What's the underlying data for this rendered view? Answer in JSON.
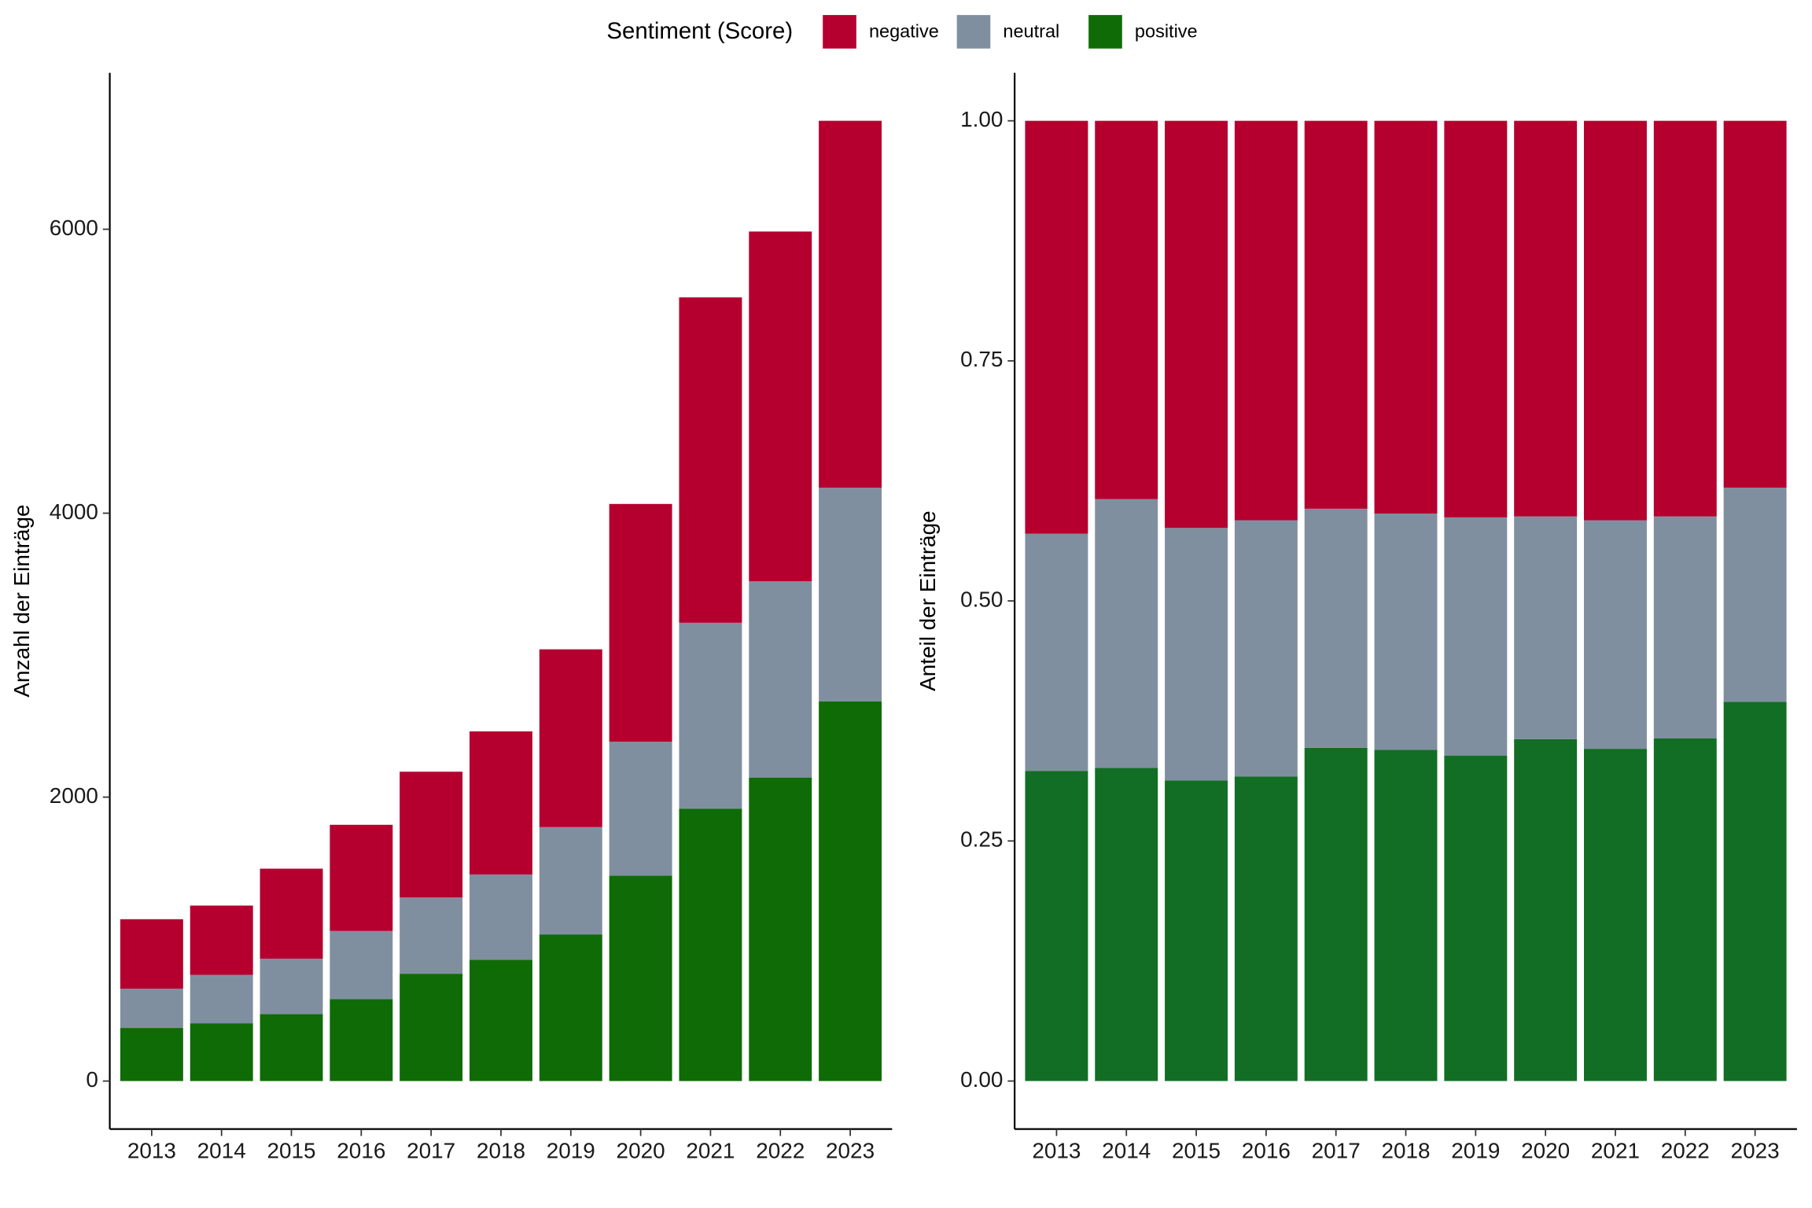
{
  "legend_title": "Sentiment (Score)",
  "chart_data": [
    {
      "type": "bar",
      "stacked": true,
      "y_label": "Anzahl der Einträge",
      "categories": [
        "2013",
        "2014",
        "2015",
        "2016",
        "2017",
        "2018",
        "2019",
        "2020",
        "2021",
        "2022",
        "2023"
      ],
      "ylim": [
        -338,
        7102
      ],
      "yticks": [
        0,
        2000,
        4000,
        6000
      ],
      "series": [
        {
          "name": "positive",
          "color": "#0f6b06",
          "values": [
            374,
            407,
            472,
            577,
            756,
            854,
            1033,
            1447,
            1919,
            2138,
            2675
          ]
        },
        {
          "name": "neutral",
          "color": "#808fa0",
          "values": [
            276,
            341,
            390,
            480,
            537,
            601,
            756,
            943,
            1309,
            1382,
            1504
          ]
        },
        {
          "name": "negative",
          "color": "#b5002f",
          "values": [
            490,
            488,
            634,
            748,
            886,
            1008,
            1252,
            1675,
            2292,
            2464,
            2585
          ]
        }
      ]
    },
    {
      "type": "bar",
      "stacked": true,
      "y_label": "Anteil der Einträge",
      "categories": [
        "2013",
        "2014",
        "2015",
        "2016",
        "2017",
        "2018",
        "2019",
        "2020",
        "2021",
        "2022",
        "2023"
      ],
      "ylim": [
        -0.05,
        1.05
      ],
      "yticks": [
        {
          "value": 0,
          "label": "0.00"
        },
        {
          "value": 0.25,
          "label": "0.25"
        },
        {
          "value": 0.5,
          "label": "0.50"
        },
        {
          "value": 0.75,
          "label": "0.75"
        },
        {
          "value": 1,
          "label": "1.00"
        }
      ],
      "series": [
        {
          "name": "positive",
          "color": "#126e24",
          "values": [
            0.323,
            0.326,
            0.313,
            0.317,
            0.347,
            0.345,
            0.339,
            0.356,
            0.346,
            0.357,
            0.395
          ]
        },
        {
          "name": "neutral",
          "color": "#808fa0",
          "values": [
            0.247,
            0.28,
            0.263,
            0.267,
            0.249,
            0.246,
            0.248,
            0.232,
            0.238,
            0.231,
            0.223
          ]
        },
        {
          "name": "negative",
          "color": "#b5002f",
          "values": [
            0.43,
            0.394,
            0.424,
            0.416,
            0.404,
            0.409,
            0.413,
            0.412,
            0.416,
            0.412,
            0.382
          ]
        }
      ]
    }
  ]
}
